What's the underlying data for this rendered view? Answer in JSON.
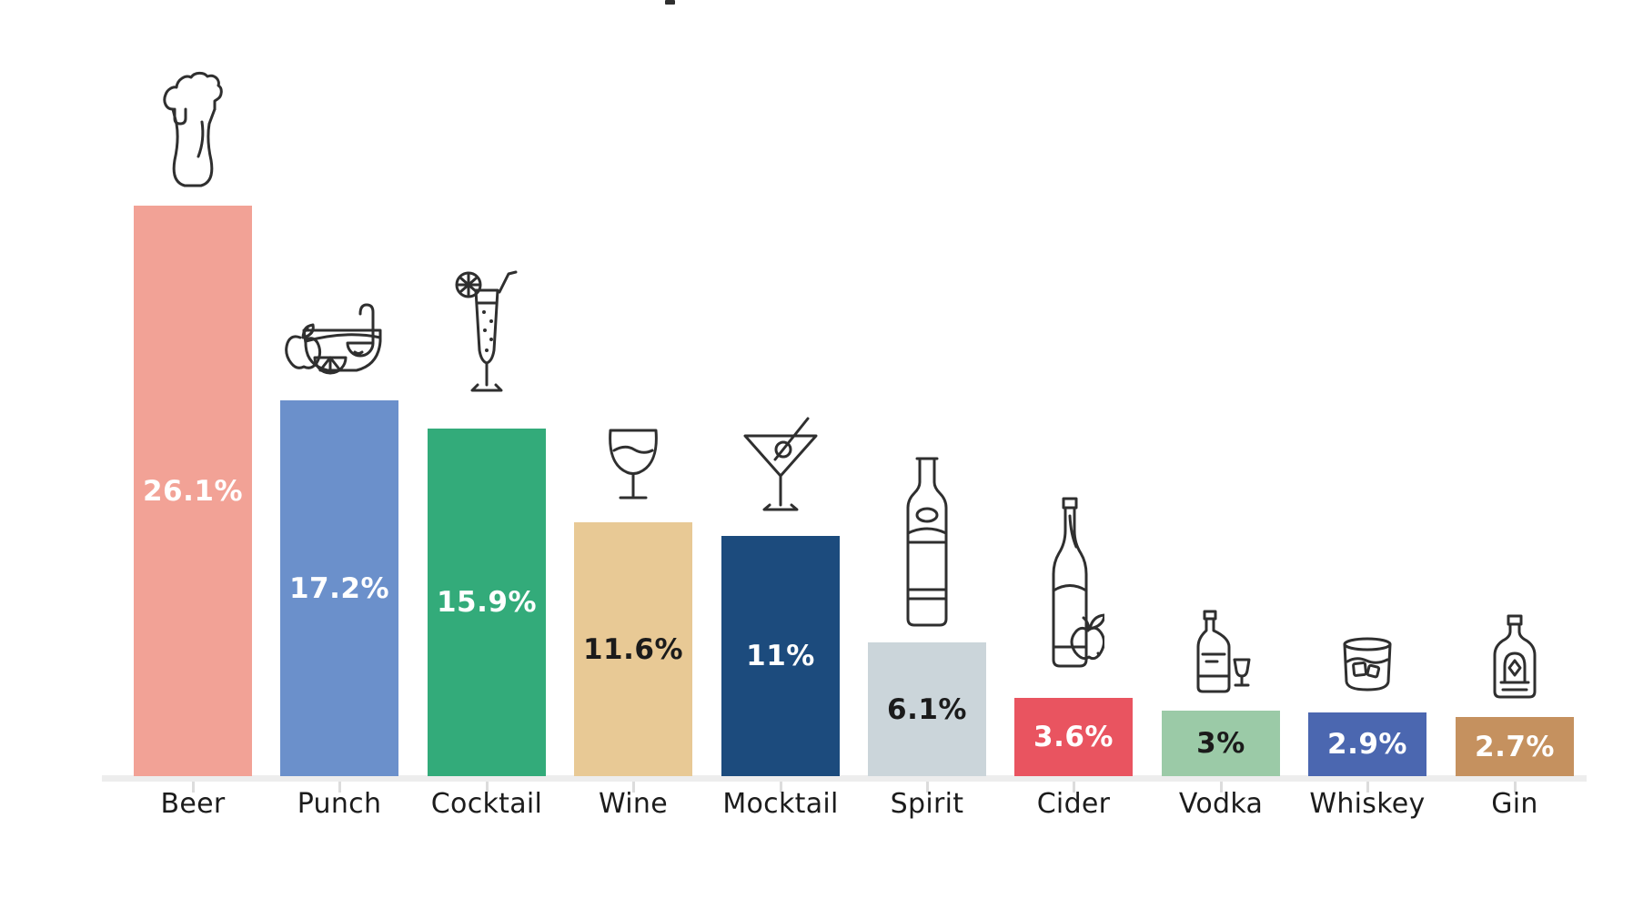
{
  "page": {
    "background": "#ffffff",
    "cropped_title_fragment": ""
  },
  "chart_data": {
    "type": "bar",
    "title": "",
    "xlabel": "",
    "ylabel": "",
    "unit": "%",
    "grid": false,
    "legend": false,
    "ylim": [
      0,
      27
    ],
    "categories": [
      "Beer",
      "Punch",
      "Cocktail",
      "Wine",
      "Mocktail",
      "Spirit",
      "Cider",
      "Vodka",
      "Whiskey",
      "Gin"
    ],
    "values": [
      26.1,
      17.2,
      15.9,
      11.6,
      11,
      6.1,
      3.6,
      3,
      2.9,
      2.7
    ],
    "value_labels": [
      "26.1%",
      "17.2%",
      "15.9%",
      "11.6%",
      "11%",
      "6.1%",
      "3.6%",
      "3%",
      "2.9%",
      "2.7%"
    ],
    "bar_colors": [
      "#F2A296",
      "#6B90CB",
      "#33AB7A",
      "#E8C995",
      "#1C4B7D",
      "#CBD5DA",
      "#E95460",
      "#9BCAA7",
      "#4B67B0",
      "#C5915F"
    ],
    "value_label_colors": [
      "#ffffff",
      "#ffffff",
      "#ffffff",
      "#1b1b1b",
      "#ffffff",
      "#1b1b1b",
      "#ffffff",
      "#1b1b1b",
      "#ffffff",
      "#ffffff"
    ],
    "icons": [
      "beer-icon",
      "punch-bowl-icon",
      "cocktail-flute-icon",
      "wine-glass-icon",
      "mocktail-martini-icon",
      "spirit-bottle-icon",
      "cider-bottle-apple-icon",
      "vodka-bottle-icon",
      "whiskey-glass-icon",
      "gin-bottle-icon"
    ],
    "icon_stroke_color": "#2f2f2f",
    "axis": {
      "baseline_color": "#ededed",
      "tick_color": "#dcdcdc",
      "category_label_color": "#1c1c1c"
    }
  }
}
